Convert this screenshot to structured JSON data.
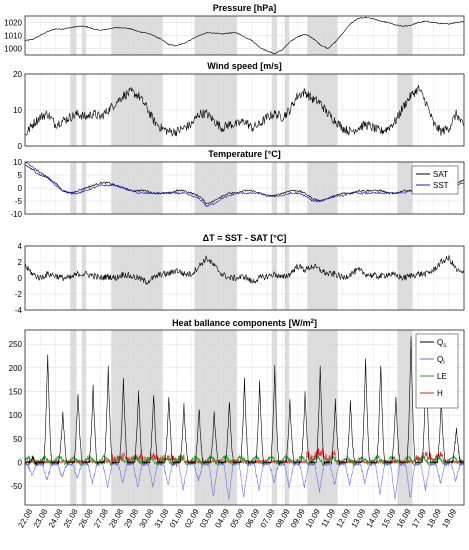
{
  "chart_data": [
    {
      "type": "line",
      "title": "Pressure [hPa]",
      "ylim": [
        995,
        1025
      ],
      "yticks": [
        1000,
        1010,
        1020
      ],
      "grid": true,
      "xlabels_shown": false,
      "series": [
        {
          "color": "#000000",
          "x": [
            0,
            0.5,
            1,
            1.5,
            2,
            2.5,
            3,
            3.5,
            4,
            4.5,
            5,
            5.5,
            6,
            6.5,
            7,
            7.5,
            8,
            8.5,
            9,
            9.5,
            10,
            10.5,
            11,
            11.5,
            12,
            12.5,
            13,
            13.5,
            14,
            14.5,
            15,
            15.5,
            16,
            16.5,
            17,
            17.5,
            18,
            18.5,
            19,
            19.5,
            20,
            20.5,
            21,
            21.5,
            22,
            22.5,
            23,
            23.5,
            24,
            24.5,
            25,
            25.5,
            26,
            26.5,
            27,
            27.5,
            28,
            28.5,
            29
          ],
          "y": [
            1006,
            1007,
            1010,
            1013,
            1015,
            1015,
            1016,
            1017,
            1017,
            1015,
            1014,
            1015,
            1016,
            1016,
            1015,
            1013,
            1012,
            1010,
            1007,
            1003,
            1002,
            1004,
            1007,
            1010,
            1012,
            1012,
            1011,
            1012,
            1012,
            1009,
            1006,
            1001,
            998,
            996,
            999,
            1005,
            1009,
            1011,
            1008,
            1003,
            1000,
            1005,
            1012,
            1019,
            1023,
            1024,
            1023,
            1021,
            1020,
            1018,
            1017,
            1018,
            1020,
            1021,
            1020,
            1019,
            1019,
            1020,
            1021
          ]
        }
      ]
    },
    {
      "type": "line",
      "title": "Wind speed [m/s]",
      "ylim": [
        0,
        20
      ],
      "yticks": [
        0,
        10,
        20
      ],
      "grid": true,
      "xlabels_shown": false,
      "series": [
        {
          "color": "#000000",
          "x": [
            0,
            0.5,
            1,
            1.5,
            2,
            2.5,
            3,
            3.5,
            4,
            4.5,
            5,
            5.5,
            6,
            6.5,
            7,
            7.5,
            8,
            8.5,
            9,
            9.5,
            10,
            10.5,
            11,
            11.5,
            12,
            12.5,
            13,
            13.5,
            14,
            14.5,
            15,
            15.5,
            16,
            16.5,
            17,
            17.5,
            18,
            18.5,
            19,
            19.5,
            20,
            20.5,
            21,
            21.5,
            22,
            22.5,
            23,
            23.5,
            24,
            24.5,
            25,
            25.5,
            26,
            26.5,
            27,
            27.5,
            28,
            28.5,
            29
          ],
          "y": [
            3,
            6,
            8,
            9,
            6,
            7,
            8,
            9,
            8,
            9,
            8,
            10,
            12,
            14,
            15,
            14,
            11,
            7,
            5,
            4,
            4,
            5,
            6,
            9,
            9,
            7,
            5,
            6,
            6,
            7,
            5,
            6,
            8,
            9,
            8,
            10,
            14,
            15,
            13,
            12,
            9,
            7,
            5,
            4,
            5,
            6,
            5,
            4,
            5,
            7,
            11,
            14,
            16,
            12,
            6,
            4,
            5,
            9,
            5
          ]
        }
      ]
    },
    {
      "type": "line",
      "title": "Temperature [°C]",
      "ylim": [
        -10,
        10
      ],
      "yticks": [
        -10,
        -5,
        0,
        5,
        10
      ],
      "grid": true,
      "legend": "top-right",
      "xlabels_shown": false,
      "series": [
        {
          "name": "SAT",
          "color": "#000000",
          "x": [
            0,
            0.5,
            1,
            1.5,
            2,
            2.5,
            3,
            3.5,
            4,
            4.5,
            5,
            5.5,
            6,
            6.5,
            7,
            7.5,
            8,
            8.5,
            9,
            9.5,
            10,
            10.5,
            11,
            11.5,
            12,
            12.5,
            13,
            13.5,
            14,
            14.5,
            15,
            15.5,
            16,
            16.5,
            17,
            17.5,
            18,
            18.5,
            19,
            19.5,
            20,
            20.5,
            21,
            21.5,
            22,
            22.5,
            23,
            23.5,
            24,
            24.5,
            25,
            25.5,
            26,
            26.5,
            27,
            27.5,
            28,
            28.5,
            29
          ],
          "y": [
            9,
            7,
            5,
            4,
            2,
            -1,
            -2,
            -1,
            0,
            1,
            2,
            2,
            1,
            0,
            -1,
            -1,
            -1,
            -2,
            -2,
            -2,
            -1,
            -1,
            -2,
            -3,
            -6,
            -5,
            -3,
            -2,
            -2,
            -1,
            -1,
            -2,
            -3,
            -3,
            -2,
            -1,
            -1,
            -2,
            -4,
            -5,
            -4,
            -3,
            -2,
            -2,
            -1,
            -1,
            -1,
            -1,
            -2,
            -2,
            -1,
            -1,
            -1,
            -1,
            -1,
            0,
            1,
            2,
            3
          ]
        },
        {
          "name": "SST",
          "color": "#1a1acc",
          "x": [
            0,
            0.5,
            1,
            1.5,
            2,
            2.5,
            3,
            3.5,
            4,
            4.5,
            5,
            5.5,
            6,
            6.5,
            7,
            7.5,
            8,
            8.5,
            9,
            9.5,
            10,
            10.5,
            11,
            11.5,
            12,
            12.5,
            13,
            13.5,
            14,
            14.5,
            15,
            15.5,
            16,
            16.5,
            17,
            17.5,
            18,
            18.5,
            19,
            19.5,
            20,
            20.5,
            21,
            21.5,
            22,
            22.5,
            23,
            23.5,
            24,
            24.5,
            25,
            25.5,
            26,
            26.5,
            27,
            27.5,
            28,
            28.5,
            29
          ],
          "y": [
            10,
            8,
            6,
            4,
            1,
            -1,
            -2,
            -2,
            -1,
            0,
            1,
            1,
            1,
            0,
            -1,
            -2,
            -2,
            -2,
            -2,
            -2,
            -2,
            -2,
            -3,
            -4,
            -7,
            -6,
            -4,
            -3,
            -2,
            -2,
            -2,
            -2,
            -3,
            -3,
            -3,
            -2,
            -2,
            -3,
            -5,
            -5,
            -4,
            -3,
            -3,
            -2,
            -2,
            -2,
            -2,
            -2,
            -2,
            -2,
            -2,
            -1,
            -1,
            -1,
            -1,
            -1,
            0,
            1,
            2
          ]
        }
      ]
    },
    {
      "type": "line",
      "title": "ΔT = SST - SAT [°C]",
      "ylim": [
        -4,
        4
      ],
      "yticks": [
        -4,
        -2,
        0,
        2,
        4
      ],
      "grid": true,
      "xlabels_shown": false,
      "series": [
        {
          "color": "#000000",
          "x": [
            0,
            0.5,
            1,
            1.5,
            2,
            2.5,
            3,
            3.5,
            4,
            4.5,
            5,
            5.5,
            6,
            6.5,
            7,
            7.5,
            8,
            8.5,
            9,
            9.5,
            10,
            10.5,
            11,
            11.5,
            12,
            12.5,
            13,
            13.5,
            14,
            14.5,
            15,
            15.5,
            16,
            16.5,
            17,
            17.5,
            18,
            18.5,
            19,
            19.5,
            20,
            20.5,
            21,
            21.5,
            22,
            22.5,
            23,
            23.5,
            24,
            24.5,
            25,
            25.5,
            26,
            26.5,
            27,
            27.5,
            28,
            28.5,
            29
          ],
          "y": [
            1.5,
            0.5,
            0,
            0.5,
            0.3,
            0,
            0,
            0.5,
            0.5,
            0.3,
            0,
            0.2,
            0,
            0.5,
            0.2,
            0,
            -0.5,
            0,
            0.5,
            0.5,
            1,
            0.5,
            0.5,
            1.5,
            2.5,
            1.5,
            0.5,
            0,
            0,
            0.2,
            -0.5,
            0,
            0.2,
            0.5,
            0,
            0.5,
            1.5,
            1,
            1.5,
            1,
            0.5,
            0.5,
            0,
            0.5,
            1,
            0.5,
            0.3,
            0.2,
            0.5,
            0.3,
            0,
            0.3,
            0.5,
            0.5,
            1,
            2,
            2.5,
            1,
            0.5
          ]
        }
      ]
    },
    {
      "type": "line",
      "title": "Heat ballance components [W/m²]",
      "ylim": [
        -90,
        280
      ],
      "yticks": [
        -50,
        0,
        50,
        100,
        150,
        200,
        250
      ],
      "grid": true,
      "legend": "top-right",
      "categories": [
        "22.08",
        "23.08",
        "24.08",
        "25.08",
        "26.08",
        "27.08",
        "28.08",
        "29.08",
        "30.08",
        "31.08",
        "01.09",
        "02.09",
        "03.09",
        "04.09",
        "05.09",
        "06.09",
        "07.09",
        "08.09",
        "09.09",
        "10.09",
        "11.09",
        "12.09",
        "13.09",
        "14.09",
        "15.09",
        "16.09",
        "17.09",
        "18.09",
        "19.09"
      ],
      "series": [
        {
          "name": "Q",
          "name_subscript": "s",
          "color": "#000000",
          "day_peaks": [
            10,
            230,
            110,
            150,
            160,
            200,
            175,
            150,
            145,
            140,
            120,
            115,
            105,
            130,
            175,
            170,
            200,
            130,
            150,
            200,
            130,
            130,
            220,
            210,
            140,
            265,
            220,
            130,
            75
          ]
        },
        {
          "name": "Q",
          "name_subscript": "l",
          "color": "#6b6bee",
          "day_troughs": [
            -25,
            -35,
            -30,
            -30,
            -40,
            -50,
            -40,
            -50,
            -50,
            -45,
            -55,
            -35,
            -70,
            -75,
            -70,
            -55,
            -40,
            -50,
            -50,
            -60,
            -45,
            -45,
            -40,
            -65,
            -75,
            -75,
            -55,
            -40,
            -35
          ]
        },
        {
          "name": "LE",
          "color": "#1aa81a",
          "typical_range": [
            -5,
            20
          ]
        },
        {
          "name": "H",
          "color": "#dd2222",
          "typical_range": [
            -10,
            40
          ]
        }
      ]
    }
  ],
  "shaded_periods": [
    [
      3.0,
      3.4
    ],
    [
      3.75,
      4.05
    ],
    [
      5.7,
      9.1
    ],
    [
      11.2,
      14.0
    ],
    [
      16.3,
      16.65
    ],
    [
      17.15,
      17.45
    ],
    [
      18.65,
      20.65
    ],
    [
      24.6,
      25.6
    ]
  ],
  "x_range": [
    0,
    29
  ]
}
